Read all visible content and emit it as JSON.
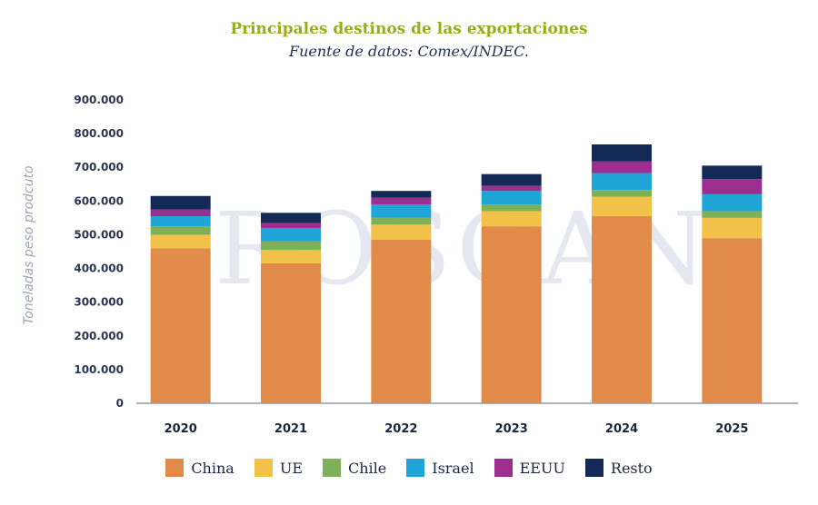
{
  "chart_data": {
    "type": "bar",
    "stacked": true,
    "title": "Principales destinos de las exportaciones",
    "subtitle": "Fuente de datos: Comex/INDEC.",
    "ylabel": "Toneladas peso prodcuto",
    "ylim": [
      0,
      900000
    ],
    "yticks": [
      "0",
      "100.000",
      "200.000",
      "300.000",
      "400.000",
      "500.000",
      "600.000",
      "700.000",
      "800.000",
      "900.000"
    ],
    "ytick_values": [
      0,
      100000,
      200000,
      300000,
      400000,
      500000,
      600000,
      700000,
      800000,
      900000
    ],
    "categories": [
      "2020",
      "2021",
      "2022",
      "2023",
      "2024",
      "2025"
    ],
    "series": [
      {
        "name": "China",
        "color": "#e08b4a",
        "values": [
          460000,
          415000,
          485000,
          525000,
          555000,
          490000
        ]
      },
      {
        "name": "UE",
        "color": "#f2c14a",
        "values": [
          40000,
          40000,
          45000,
          45000,
          58000,
          60000
        ]
      },
      {
        "name": "Chile",
        "color": "#7eb05a",
        "values": [
          25000,
          25000,
          20000,
          20000,
          20000,
          20000
        ]
      },
      {
        "name": "Israel",
        "color": "#20a6d6",
        "values": [
          30000,
          40000,
          40000,
          40000,
          50000,
          50000
        ]
      },
      {
        "name": "EEUU",
        "color": "#9b2e8e",
        "values": [
          20000,
          15000,
          20000,
          15000,
          35000,
          45000
        ]
      },
      {
        "name": "Resto",
        "color": "#132a56",
        "values": [
          40000,
          30000,
          20000,
          35000,
          50000,
          40000
        ]
      }
    ],
    "legend_position": "bottom",
    "grid": false
  },
  "watermark": "ROSGAN"
}
